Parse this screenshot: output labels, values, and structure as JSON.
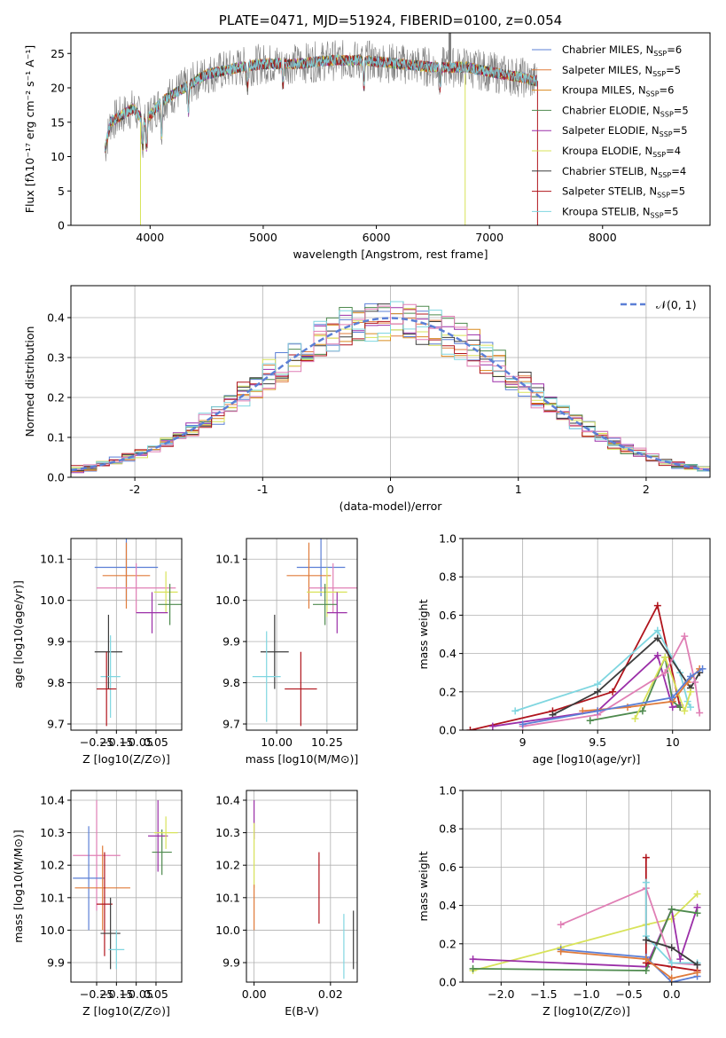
{
  "title": "PLATE=0471, MJD=51924, FIBERID=0100, z=0.054",
  "colors": {
    "Chabrier MILES": "#5b7fd6",
    "Salpeter MILES": "#e07b3a",
    "Kroupa MILES": "#d98a1f",
    "Chabrier ELODIE": "#4e8a4e",
    "Salpeter ELODIE": "#9b2fa8",
    "Kroupa ELODIE": "#d8e35a",
    "Chabrier STELIB": "#3c3c3c",
    "Salpeter STELIB": "#b0141c",
    "Kroupa STELIB": "#7fd6e0",
    "Pink": "#e07fb5",
    "Grey": "#808080"
  },
  "chart_data": [
    {
      "id": "spectrum",
      "type": "line",
      "title": "PLATE=0471, MJD=51924, FIBERID=0100, z=0.054",
      "xlabel": "wavelength [Angstrom, rest frame]",
      "ylabel": "Flux [fλ10⁻¹⁷ erg cm⁻² s⁻¹ A⁻¹]",
      "xlim": [
        3300,
        8950
      ],
      "ylim": [
        0,
        28
      ],
      "xticks": [
        4000,
        5000,
        6000,
        7000,
        8000
      ],
      "yticks": [
        0,
        5,
        10,
        15,
        20,
        25
      ],
      "legend_position": "upper right",
      "legend": [
        "Chabrier MILES, N_SSP=6",
        "Salpeter MILES, N_SSP=5",
        "Kroupa MILES, N_SSP=6",
        "Chabrier ELODIE, N_SSP=5",
        "Salpeter ELODIE, N_SSP=5",
        "Kroupa ELODIE, N_SSP=4",
        "Chabrier STELIB, N_SSP=4",
        "Salpeter STELIB, N_SSP=5",
        "Kroupa STELIB, N_SSP=5"
      ],
      "continuum": [
        [
          3600,
          11
        ],
        [
          3650,
          15
        ],
        [
          3750,
          16
        ],
        [
          3850,
          17
        ],
        [
          3950,
          15
        ],
        [
          4100,
          18
        ],
        [
          4300,
          20
        ],
        [
          4500,
          22
        ],
        [
          4800,
          23
        ],
        [
          5000,
          23.5
        ],
        [
          5300,
          23.5
        ],
        [
          5600,
          24
        ],
        [
          5900,
          24
        ],
        [
          6200,
          23.5
        ],
        [
          6500,
          23
        ],
        [
          6800,
          23
        ],
        [
          7100,
          22
        ],
        [
          7300,
          21.5
        ],
        [
          7400,
          21
        ]
      ]
    },
    {
      "id": "residuals",
      "type": "line",
      "xlabel": "(data-model)/error",
      "ylabel": "Normed distribution",
      "xlim": [
        -2.5,
        2.5
      ],
      "ylim": [
        0,
        0.48
      ],
      "xticks": [
        -2,
        -1,
        0,
        1,
        2
      ],
      "yticks": [
        0.0,
        0.1,
        0.2,
        0.3,
        0.4
      ],
      "legend": [
        "𝒩(0, 1)"
      ],
      "legend_position": "upper right",
      "gaussian": {
        "mu": 0,
        "sigma": 1
      }
    },
    {
      "id": "age-vs-Z",
      "type": "scatter",
      "xlabel": "Z [log10(Z/Z⊙)]",
      "ylabel": "age  [log10(age/yr)]",
      "xlim": [
        -0.38,
        0.18
      ],
      "ylim": [
        9.685,
        10.15
      ],
      "xticks": [
        -0.25,
        -0.15,
        -0.05,
        0.05
      ],
      "xtick_labels": [
        "−0.25",
        "−0.15",
        "−0.05",
        "0.05"
      ],
      "yticks": [
        9.7,
        9.8,
        9.9,
        10.0,
        10.1
      ],
      "errorbars": [
        {
          "series": "Chabrier MILES",
          "x": -0.1,
          "y": 10.08,
          "xerr": 0.16,
          "yerr": 0.08
        },
        {
          "series": "Salpeter MILES",
          "x": -0.1,
          "y": 10.06,
          "xerr": 0.12,
          "yerr": 0.08
        },
        {
          "series": "Pink",
          "x": -0.05,
          "y": 10.03,
          "xerr": 0.2,
          "yerr": 0.06
        },
        {
          "series": "Kroupa ELODIE",
          "x": 0.1,
          "y": 10.02,
          "xerr": 0.06,
          "yerr": 0.05
        },
        {
          "series": "Chabrier ELODIE",
          "x": 0.12,
          "y": 9.99,
          "xerr": 0.06,
          "yerr": 0.05
        },
        {
          "series": "Salpeter ELODIE",
          "x": 0.03,
          "y": 9.97,
          "xerr": 0.08,
          "yerr": 0.05
        },
        {
          "series": "Chabrier STELIB",
          "x": -0.19,
          "y": 9.875,
          "xerr": 0.07,
          "yerr": 0.09
        },
        {
          "series": "Kroupa STELIB",
          "x": -0.18,
          "y": 9.815,
          "xerr": 0.05,
          "yerr": 0.1
        },
        {
          "series": "Salpeter STELIB",
          "x": -0.2,
          "y": 9.785,
          "xerr": 0.05,
          "yerr": 0.09
        }
      ]
    },
    {
      "id": "age-vs-mass",
      "type": "scatter",
      "xlabel": "mass [log10(M/M⊙)]",
      "xlim": [
        9.85,
        10.4
      ],
      "ylim": [
        9.685,
        10.15
      ],
      "xticks": [
        10.0,
        10.25
      ],
      "xtick_labels": [
        "10.00",
        "10.25"
      ],
      "yticks": [
        9.7,
        9.8,
        9.9,
        10.0,
        10.1
      ],
      "errorbars": [
        {
          "series": "Chabrier MILES",
          "x": 10.22,
          "y": 10.08,
          "xerr": 0.12,
          "yerr": 0.07
        },
        {
          "series": "Salpeter MILES",
          "x": 10.16,
          "y": 10.06,
          "xerr": 0.11,
          "yerr": 0.08
        },
        {
          "series": "Pink",
          "x": 10.28,
          "y": 10.03,
          "xerr": 0.12,
          "yerr": 0.06
        },
        {
          "series": "Kroupa ELODIE",
          "x": 10.25,
          "y": 10.02,
          "xerr": 0.1,
          "yerr": 0.06
        },
        {
          "series": "Chabrier ELODIE",
          "x": 10.24,
          "y": 9.99,
          "xerr": 0.06,
          "yerr": 0.05
        },
        {
          "series": "Salpeter ELODIE",
          "x": 10.3,
          "y": 9.97,
          "xerr": 0.05,
          "yerr": 0.05
        },
        {
          "series": "Chabrier STELIB",
          "x": 9.99,
          "y": 9.875,
          "xerr": 0.07,
          "yerr": 0.09
        },
        {
          "series": "Kroupa STELIB",
          "x": 9.95,
          "y": 9.815,
          "xerr": 0.07,
          "yerr": 0.11
        },
        {
          "series": "Salpeter STELIB",
          "x": 10.12,
          "y": 9.785,
          "xerr": 0.08,
          "yerr": 0.09
        }
      ]
    },
    {
      "id": "mass-weight-vs-age",
      "type": "line",
      "xlabel": "age  [log10(age/yr)]",
      "ylabel": "mass weight",
      "xlim": [
        8.6,
        10.25
      ],
      "ylim": [
        0,
        1.0
      ],
      "xticks": [
        9.0,
        9.5,
        10.0
      ],
      "yticks": [
        0.0,
        0.2,
        0.4,
        0.6,
        0.8,
        1.0
      ],
      "series": [
        {
          "name": "Salpeter STELIB",
          "points": [
            [
              8.65,
              0.0
            ],
            [
              9.2,
              0.1
            ],
            [
              9.6,
              0.2
            ],
            [
              9.9,
              0.65
            ],
            [
              10.05,
              0.12
            ]
          ]
        },
        {
          "name": "Kroupa STELIB",
          "points": [
            [
              8.95,
              0.1
            ],
            [
              9.5,
              0.24
            ],
            [
              9.9,
              0.52
            ],
            [
              10.05,
              0.3
            ],
            [
              10.1,
              0.15
            ],
            [
              10.12,
              0.12
            ]
          ]
        },
        {
          "name": "Chabrier STELIB",
          "points": [
            [
              9.2,
              0.08
            ],
            [
              9.5,
              0.2
            ],
            [
              9.9,
              0.48
            ],
            [
              10.12,
              0.22
            ],
            [
              10.18,
              0.3
            ]
          ]
        },
        {
          "name": "Salpeter ELODIE",
          "points": [
            [
              8.8,
              0.02
            ],
            [
              9.5,
              0.1
            ],
            [
              9.9,
              0.39
            ],
            [
              10.0,
              0.12
            ],
            [
              10.05,
              0.13
            ]
          ]
        },
        {
          "name": "Chabrier ELODIE",
          "points": [
            [
              9.45,
              0.05
            ],
            [
              9.8,
              0.1
            ],
            [
              9.95,
              0.38
            ],
            [
              10.0,
              0.15
            ],
            [
              10.05,
              0.12
            ]
          ]
        },
        {
          "name": "Kroupa ELODIE",
          "points": [
            [
              9.75,
              0.06
            ],
            [
              9.95,
              0.38
            ],
            [
              10.08,
              0.1
            ],
            [
              10.12,
              0.2
            ]
          ]
        },
        {
          "name": "Pink",
          "points": [
            [
              9.0,
              0.02
            ],
            [
              9.5,
              0.08
            ],
            [
              9.95,
              0.3
            ],
            [
              10.08,
              0.49
            ],
            [
              10.15,
              0.25
            ],
            [
              10.18,
              0.09
            ]
          ]
        },
        {
          "name": "Salpeter MILES",
          "points": [
            [
              9.4,
              0.1
            ],
            [
              9.7,
              0.12
            ],
            [
              10.0,
              0.15
            ],
            [
              10.1,
              0.25
            ],
            [
              10.18,
              0.32
            ]
          ]
        },
        {
          "name": "Chabrier MILES",
          "points": [
            [
              9.0,
              0.03
            ],
            [
              9.5,
              0.1
            ],
            [
              10.0,
              0.17
            ],
            [
              10.12,
              0.28
            ],
            [
              10.2,
              0.32
            ]
          ]
        }
      ]
    },
    {
      "id": "mass-vs-Z",
      "type": "scatter",
      "xlabel": "Z [log10(Z/Z⊙)]",
      "ylabel": "mass [log10(M/M⊙)]",
      "xlim": [
        -0.38,
        0.18
      ],
      "ylim": [
        9.84,
        10.43
      ],
      "xticks": [
        -0.25,
        -0.15,
        -0.05,
        0.05
      ],
      "xtick_labels": [
        "−0.25",
        "−0.15",
        "−0.05",
        "0.05"
      ],
      "yticks": [
        9.9,
        10.0,
        10.1,
        10.2,
        10.3,
        10.4
      ],
      "errorbars": [
        {
          "series": "Pink",
          "x": -0.25,
          "y": 10.23,
          "xerr": 0.12,
          "yerr": 0.17
        },
        {
          "series": "Chabrier MILES",
          "x": -0.29,
          "y": 10.16,
          "xerr": 0.08,
          "yerr": 0.16
        },
        {
          "series": "Salpeter MILES",
          "x": -0.22,
          "y": 10.13,
          "xerr": 0.14,
          "yerr": 0.13
        },
        {
          "series": "Chabrier ELODIE",
          "x": 0.08,
          "y": 10.24,
          "xerr": 0.05,
          "yerr": 0.07
        },
        {
          "series": "Salpeter ELODIE",
          "x": 0.06,
          "y": 10.29,
          "xerr": 0.05,
          "yerr": 0.11
        },
        {
          "series": "Kroupa ELODIE",
          "x": 0.1,
          "y": 10.3,
          "xerr": 0.06,
          "yerr": 0.05
        },
        {
          "series": "Salpeter STELIB",
          "x": -0.21,
          "y": 10.08,
          "xerr": 0.04,
          "yerr": 0.16
        },
        {
          "series": "Chabrier STELIB",
          "x": -0.18,
          "y": 9.99,
          "xerr": 0.05,
          "yerr": 0.11
        },
        {
          "series": "Kroupa STELIB",
          "x": -0.15,
          "y": 9.94,
          "xerr": 0.04,
          "yerr": 0.06
        }
      ]
    },
    {
      "id": "mass-vs-EBV",
      "type": "scatter",
      "xlabel": "E(B-V)",
      "xlim": [
        -0.002,
        0.027
      ],
      "ylim": [
        9.84,
        10.43
      ],
      "xticks": [
        0.0,
        0.02
      ],
      "xtick_labels": [
        "0.00",
        "0.02"
      ],
      "yticks": [
        9.9,
        10.0,
        10.1,
        10.2,
        10.3,
        10.4
      ],
      "errorbars": [
        {
          "series": "Salpeter ELODIE",
          "x": 0.0,
          "y": 10.34,
          "xerr": 0,
          "yerr": 0.06
        },
        {
          "series": "Kroupa ELODIE",
          "x": 0.0,
          "y": 10.23,
          "xerr": 0,
          "yerr": 0.1
        },
        {
          "series": "Salpeter MILES",
          "x": 0.0,
          "y": 10.07,
          "xerr": 0,
          "yerr": 0.07
        },
        {
          "series": "Salpeter STELIB",
          "x": 0.017,
          "y": 10.13,
          "xerr": 0,
          "yerr": 0.11
        },
        {
          "series": "Kroupa STELIB",
          "x": 0.0235,
          "y": 9.95,
          "xerr": 0,
          "yerr": 0.1
        },
        {
          "series": "Chabrier STELIB",
          "x": 0.026,
          "y": 9.97,
          "xerr": 0,
          "yerr": 0.09
        }
      ]
    },
    {
      "id": "mass-weight-vs-Z",
      "type": "line",
      "xlabel": "Z [log10(Z/Z⊙)]",
      "ylabel": "mass weight",
      "xlim": [
        -2.45,
        0.45
      ],
      "ylim": [
        0,
        1.0
      ],
      "xticks": [
        -2.0,
        -1.5,
        -1.0,
        -0.5,
        0.0
      ],
      "xtick_labels": [
        "−2.0",
        "−1.5",
        "−1.0",
        "−0.5",
        "0.0"
      ],
      "yticks": [
        0.0,
        0.2,
        0.4,
        0.6,
        0.8,
        1.0
      ],
      "series": [
        {
          "name": "Kroupa ELODIE",
          "points": [
            [
              -2.33,
              0.06
            ],
            [
              -1.3,
              0.18
            ],
            [
              -0.3,
              0.3
            ],
            [
              0.0,
              0.33
            ],
            [
              0.3,
              0.46
            ]
          ]
        },
        {
          "name": "Salpeter ELODIE",
          "points": [
            [
              -2.33,
              0.12
            ],
            [
              -0.3,
              0.08
            ],
            [
              0.0,
              0.38
            ],
            [
              0.1,
              0.12
            ],
            [
              0.3,
              0.39
            ]
          ]
        },
        {
          "name": "Chabrier ELODIE",
          "points": [
            [
              -2.33,
              0.07
            ],
            [
              -0.3,
              0.06
            ],
            [
              0.0,
              0.38
            ],
            [
              0.3,
              0.36
            ]
          ]
        },
        {
          "name": "Pink",
          "points": [
            [
              -1.3,
              0.3
            ],
            [
              -0.3,
              0.49
            ],
            [
              0.0,
              0.1
            ],
            [
              0.3,
              0.09
            ]
          ]
        },
        {
          "name": "Salpeter STELIB",
          "points": [
            [
              -0.3,
              0.65
            ],
            [
              -0.3,
              0.1
            ],
            [
              0.0,
              0.08
            ],
            [
              0.3,
              0.06
            ]
          ]
        },
        {
          "name": "Kroupa STELIB",
          "points": [
            [
              -0.3,
              0.52
            ],
            [
              -0.3,
              0.24
            ],
            [
              0.0,
              0.1
            ],
            [
              0.3,
              0.1
            ]
          ]
        },
        {
          "name": "Chabrier STELIB",
          "points": [
            [
              -0.3,
              0.22
            ],
            [
              0.0,
              0.18
            ],
            [
              0.3,
              0.09
            ]
          ]
        },
        {
          "name": "Chabrier MILES",
          "points": [
            [
              -1.3,
              0.17
            ],
            [
              -0.3,
              0.13
            ],
            [
              0.0,
              0.0
            ],
            [
              0.3,
              0.03
            ]
          ]
        },
        {
          "name": "Salpeter MILES",
          "points": [
            [
              -1.3,
              0.16
            ],
            [
              -0.3,
              0.12
            ],
            [
              0.0,
              0.02
            ],
            [
              0.3,
              0.05
            ]
          ]
        }
      ]
    }
  ]
}
